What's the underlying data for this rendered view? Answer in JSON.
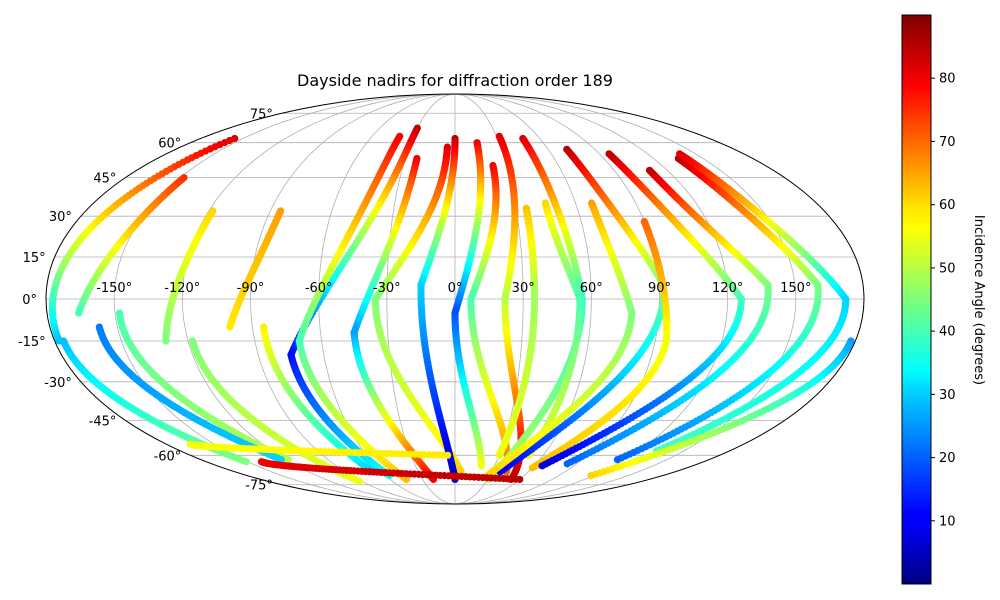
{
  "chart_data": {
    "type": "scatter",
    "projection": "mollweide",
    "title": "Dayside nadirs for diffraction order 189",
    "x_ticks": [
      "-150°",
      "-120°",
      "-90°",
      "-60°",
      "-30°",
      "0°",
      "30°",
      "60°",
      "90°",
      "120°",
      "150°"
    ],
    "x_tick_values": [
      -150,
      -120,
      -90,
      -60,
      -30,
      0,
      30,
      60,
      90,
      120,
      150
    ],
    "y_ticks": [
      "-75°",
      "-60°",
      "-45°",
      "-30°",
      "-15°",
      "0°",
      "15°",
      "30°",
      "45°",
      "60°",
      "75°"
    ],
    "y_tick_values": [
      -75,
      -60,
      -45,
      -30,
      -15,
      0,
      15,
      30,
      45,
      60,
      75
    ],
    "grid": true,
    "xlim": [
      -180,
      180
    ],
    "ylim": [
      -90,
      90
    ],
    "colorbar": {
      "label": "Incidence Angle (degrees)",
      "colormap": "jet",
      "range": [
        0,
        90
      ],
      "ticks": [
        "10",
        "20",
        "30",
        "40",
        "50",
        "60",
        "70",
        "80"
      ],
      "tick_values": [
        10,
        20,
        30,
        40,
        50,
        60,
        70,
        80
      ]
    },
    "series": [
      {
        "lon0": -178,
        "lat0": -15,
        "dlon": 22,
        "lat1": 62,
        "ia0": 28,
        "ia1": 82
      },
      {
        "lon0": -176,
        "lat0": -15,
        "dlon": 25,
        "lat1": -63,
        "ia0": 28,
        "ia1": 45
      },
      {
        "lon0": -148,
        "lat0": 45,
        "dlon": -18,
        "lat1": -5,
        "ia0": 75,
        "ia1": 40
      },
      {
        "lon0": -148,
        "lat0": -5,
        "dlon": 30,
        "lat1": -62,
        "ia0": 40,
        "ia1": 50
      },
      {
        "lon0": -158,
        "lat0": -10,
        "dlon": 35,
        "lat1": -62,
        "ia0": 22,
        "ia1": 30
      },
      {
        "lon0": -118,
        "lat0": 32,
        "dlon": -12,
        "lat1": -15,
        "ia0": 60,
        "ia1": 45
      },
      {
        "lon0": -118,
        "lat0": -15,
        "dlon": 26,
        "lat1": -73,
        "ia0": 45,
        "ia1": 55
      },
      {
        "lon0": -85,
        "lat0": 32,
        "dlon": -15,
        "lat1": -10,
        "ia0": 65,
        "ia1": 58
      },
      {
        "lon0": -85,
        "lat0": -10,
        "dlon": 18,
        "lat1": -68,
        "ia0": 58,
        "ia1": 30
      },
      {
        "lon0": -30,
        "lat0": 67,
        "dlon": -45,
        "lat1": -20,
        "ia0": 85,
        "ia1": 12
      },
      {
        "lon0": -75,
        "lat0": -20,
        "dlon": 18,
        "lat1": -70,
        "ia0": 12,
        "ia1": 35
      },
      {
        "lon0": -40,
        "lat0": 63,
        "dlon": -30,
        "lat1": -15,
        "ia0": 80,
        "ia1": 40
      },
      {
        "lon0": -70,
        "lat0": -15,
        "dlon": 25,
        "lat1": -72,
        "ia0": 40,
        "ia1": 62
      },
      {
        "lon0": -23,
        "lat0": 53,
        "dlon": -22,
        "lat1": -12,
        "ia0": 80,
        "ia1": 25
      },
      {
        "lon0": -45,
        "lat0": -12,
        "dlon": 25,
        "lat1": -72,
        "ia0": 25,
        "ia1": 80
      },
      {
        "lon0": -5,
        "lat0": 58,
        "dlon": -30,
        "lat1": 0,
        "ia0": 82,
        "ia1": 45
      },
      {
        "lon0": -35,
        "lat0": 0,
        "dlon": 40,
        "lat1": -68,
        "ia0": 45,
        "ia1": 60
      },
      {
        "lon0": 0,
        "lat0": 62,
        "dlon": -15,
        "lat1": 5,
        "ia0": 85,
        "ia1": 30
      },
      {
        "lon0": -15,
        "lat0": 5,
        "dlon": 15,
        "lat1": -72,
        "ia0": 30,
        "ia1": 5
      },
      {
        "lon0": 15,
        "lat0": 60,
        "dlon": -15,
        "lat1": -5,
        "ia0": 80,
        "ia1": 18
      },
      {
        "lon0": 0,
        "lat0": -5,
        "dlon": 20,
        "lat1": -65,
        "ia0": 18,
        "ia1": 55
      },
      {
        "lon0": 22,
        "lat0": 50,
        "dlon": -15,
        "lat1": 0,
        "ia0": 80,
        "ia1": 40
      },
      {
        "lon0": 7,
        "lat0": 0,
        "dlon": 35,
        "lat1": -68,
        "ia0": 40,
        "ia1": 70
      },
      {
        "lon0": 32,
        "lat0": 63,
        "dlon": -10,
        "lat1": 0,
        "ia0": 82,
        "ia1": 50
      },
      {
        "lon0": 22,
        "lat0": 0,
        "dlon": 30,
        "lat1": -72,
        "ia0": 50,
        "ia1": 85
      },
      {
        "lon0": 48,
        "lat0": 62,
        "dlon": 8,
        "lat1": 0,
        "ia0": 82,
        "ia1": 38
      },
      {
        "lon0": 56,
        "lat0": 0,
        "dlon": -25,
        "lat1": -72,
        "ia0": 38,
        "ia1": 50
      },
      {
        "lon0": 45,
        "lat0": 35,
        "dlon": 10,
        "lat1": 0,
        "ia0": 60,
        "ia1": 40
      },
      {
        "lon0": 55,
        "lat0": 0,
        "dlon": -5,
        "lat1": -60,
        "ia0": 40,
        "ia1": 55
      },
      {
        "lon0": 35,
        "lat0": 33,
        "dlon": 0,
        "lat1": 0,
        "ia0": 62,
        "ia1": 48
      },
      {
        "lon0": 35,
        "lat0": 0,
        "dlon": -5,
        "lat1": -60,
        "ia0": 48,
        "ia1": 55
      },
      {
        "lon0": 72,
        "lat0": 57,
        "dlon": 20,
        "lat1": 5,
        "ia0": 85,
        "ia1": 45
      },
      {
        "lon0": 92,
        "lat0": 5,
        "dlon": -55,
        "lat1": -68,
        "ia0": 45,
        "ia1": 10
      },
      {
        "lon0": 68,
        "lat0": 35,
        "dlon": 10,
        "lat1": -5,
        "ia0": 65,
        "ia1": 45
      },
      {
        "lon0": 78,
        "lat0": -5,
        "dlon": -50,
        "lat1": -70,
        "ia0": 45,
        "ia1": 60
      },
      {
        "lon0": 90,
        "lat0": 28,
        "dlon": 5,
        "lat1": -15,
        "ia0": 70,
        "ia1": 55
      },
      {
        "lon0": 95,
        "lat0": -15,
        "dlon": -35,
        "lat1": -66,
        "ia0": 55,
        "ia1": 62
      },
      {
        "lon0": 96,
        "lat0": 55,
        "dlon": 30,
        "lat1": 0,
        "ia0": 85,
        "ia1": 40
      },
      {
        "lon0": 126,
        "lat0": 0,
        "dlon": -60,
        "lat1": -65,
        "ia0": 40,
        "ia1": 8
      },
      {
        "lon0": 110,
        "lat0": 48,
        "dlon": 28,
        "lat1": 5,
        "ia0": 85,
        "ia1": 45
      },
      {
        "lon0": 138,
        "lat0": 5,
        "dlon": -55,
        "lat1": -64,
        "ia0": 45,
        "ia1": 20
      },
      {
        "lon0": 135,
        "lat0": 53,
        "dlon": 25,
        "lat1": 5,
        "ia0": 85,
        "ia1": 45
      },
      {
        "lon0": 160,
        "lat0": 5,
        "dlon": -45,
        "lat1": -62,
        "ia0": 45,
        "ia1": 20
      },
      {
        "lon0": 140,
        "lat0": 55,
        "dlon": 32,
        "lat1": 0,
        "ia0": 82,
        "ia1": 30
      },
      {
        "lon0": 172,
        "lat0": 0,
        "dlon": -40,
        "lat1": -58,
        "ia0": 30,
        "ia1": 40
      },
      {
        "lon0": 178,
        "lat0": -15,
        "dlon": -60,
        "lat1": -70,
        "ia0": 25,
        "ia1": 60
      },
      {
        "lon0": -165,
        "lat0": -55,
        "dlon": 160,
        "lat1": -60,
        "ia0": 55,
        "ia1": 58
      },
      {
        "lon0": -140,
        "lat0": -63,
        "dlon": 200,
        "lat1": -72,
        "ia0": 80,
        "ia1": 85
      }
    ]
  }
}
